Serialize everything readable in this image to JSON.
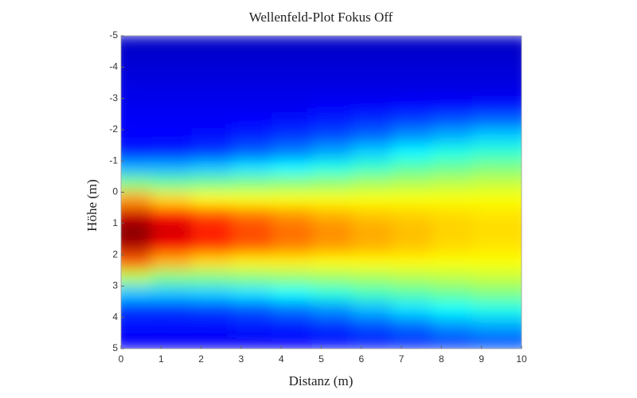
{
  "chart_data": {
    "type": "heatmap",
    "title": "Wellenfeld-Plot Fokus Off",
    "x_label": "Distanz (m)",
    "y_label": "Höhe (m)",
    "colormap": "jet",
    "y_inverted": true,
    "xlim": [
      0,
      10
    ],
    "ylim": [
      -5,
      5
    ],
    "xticks": [
      0,
      1,
      2,
      3,
      4,
      5,
      6,
      7,
      8,
      9,
      10
    ],
    "yticks": [
      -5,
      -4,
      -3,
      -2,
      -1,
      0,
      1,
      2,
      3,
      4,
      5
    ],
    "x": [
      0.5,
      1.5,
      2.5,
      3.5,
      4.5,
      5.5,
      6.5,
      7.5,
      8.5,
      9.5
    ],
    "y": [
      -4.75,
      -4.25,
      -3.75,
      -3.25,
      -2.75,
      -2.25,
      -1.75,
      -1.25,
      -0.75,
      -0.25,
      0.25,
      0.75,
      1.25,
      1.75,
      2.25,
      2.75,
      3.25,
      3.75,
      4.25,
      4.75
    ],
    "z": [
      [
        0.07,
        0.07,
        0.07,
        0.07,
        0.07,
        0.07,
        0.07,
        0.07,
        0.07,
        0.07
      ],
      [
        0.08,
        0.08,
        0.08,
        0.08,
        0.08,
        0.08,
        0.08,
        0.08,
        0.08,
        0.08
      ],
      [
        0.09,
        0.09,
        0.09,
        0.09,
        0.09,
        0.09,
        0.09,
        0.09,
        0.09,
        0.09
      ],
      [
        0.1,
        0.1,
        0.1,
        0.1,
        0.1,
        0.1,
        0.1,
        0.1,
        0.1,
        0.1
      ],
      [
        0.11,
        0.11,
        0.11,
        0.11,
        0.11,
        0.12,
        0.12,
        0.13,
        0.13,
        0.14
      ],
      [
        0.12,
        0.12,
        0.12,
        0.13,
        0.14,
        0.15,
        0.17,
        0.19,
        0.21,
        0.23
      ],
      [
        0.13,
        0.13,
        0.14,
        0.16,
        0.18,
        0.2,
        0.23,
        0.27,
        0.3,
        0.33
      ],
      [
        0.15,
        0.16,
        0.18,
        0.22,
        0.25,
        0.29,
        0.33,
        0.37,
        0.4,
        0.42
      ],
      [
        0.3,
        0.3,
        0.32,
        0.35,
        0.37,
        0.4,
        0.43,
        0.46,
        0.48,
        0.5
      ],
      [
        0.5,
        0.48,
        0.49,
        0.5,
        0.51,
        0.52,
        0.54,
        0.55,
        0.56,
        0.57
      ],
      [
        0.72,
        0.66,
        0.63,
        0.62,
        0.62,
        0.62,
        0.62,
        0.62,
        0.62,
        0.62
      ],
      [
        0.92,
        0.86,
        0.8,
        0.76,
        0.73,
        0.7,
        0.68,
        0.67,
        0.66,
        0.65
      ],
      [
        1.0,
        0.92,
        0.86,
        0.81,
        0.77,
        0.74,
        0.71,
        0.69,
        0.67,
        0.66
      ],
      [
        0.95,
        0.88,
        0.82,
        0.78,
        0.75,
        0.72,
        0.7,
        0.68,
        0.66,
        0.65
      ],
      [
        0.78,
        0.7,
        0.66,
        0.64,
        0.64,
        0.63,
        0.63,
        0.63,
        0.62,
        0.62
      ],
      [
        0.55,
        0.5,
        0.5,
        0.51,
        0.52,
        0.53,
        0.54,
        0.55,
        0.56,
        0.57
      ],
      [
        0.32,
        0.32,
        0.33,
        0.35,
        0.38,
        0.41,
        0.44,
        0.46,
        0.48,
        0.5
      ],
      [
        0.18,
        0.18,
        0.19,
        0.21,
        0.24,
        0.27,
        0.31,
        0.35,
        0.38,
        0.4
      ],
      [
        0.14,
        0.14,
        0.14,
        0.15,
        0.16,
        0.18,
        0.21,
        0.24,
        0.28,
        0.3
      ],
      [
        0.12,
        0.12,
        0.12,
        0.12,
        0.13,
        0.14,
        0.15,
        0.17,
        0.19,
        0.21
      ]
    ]
  }
}
